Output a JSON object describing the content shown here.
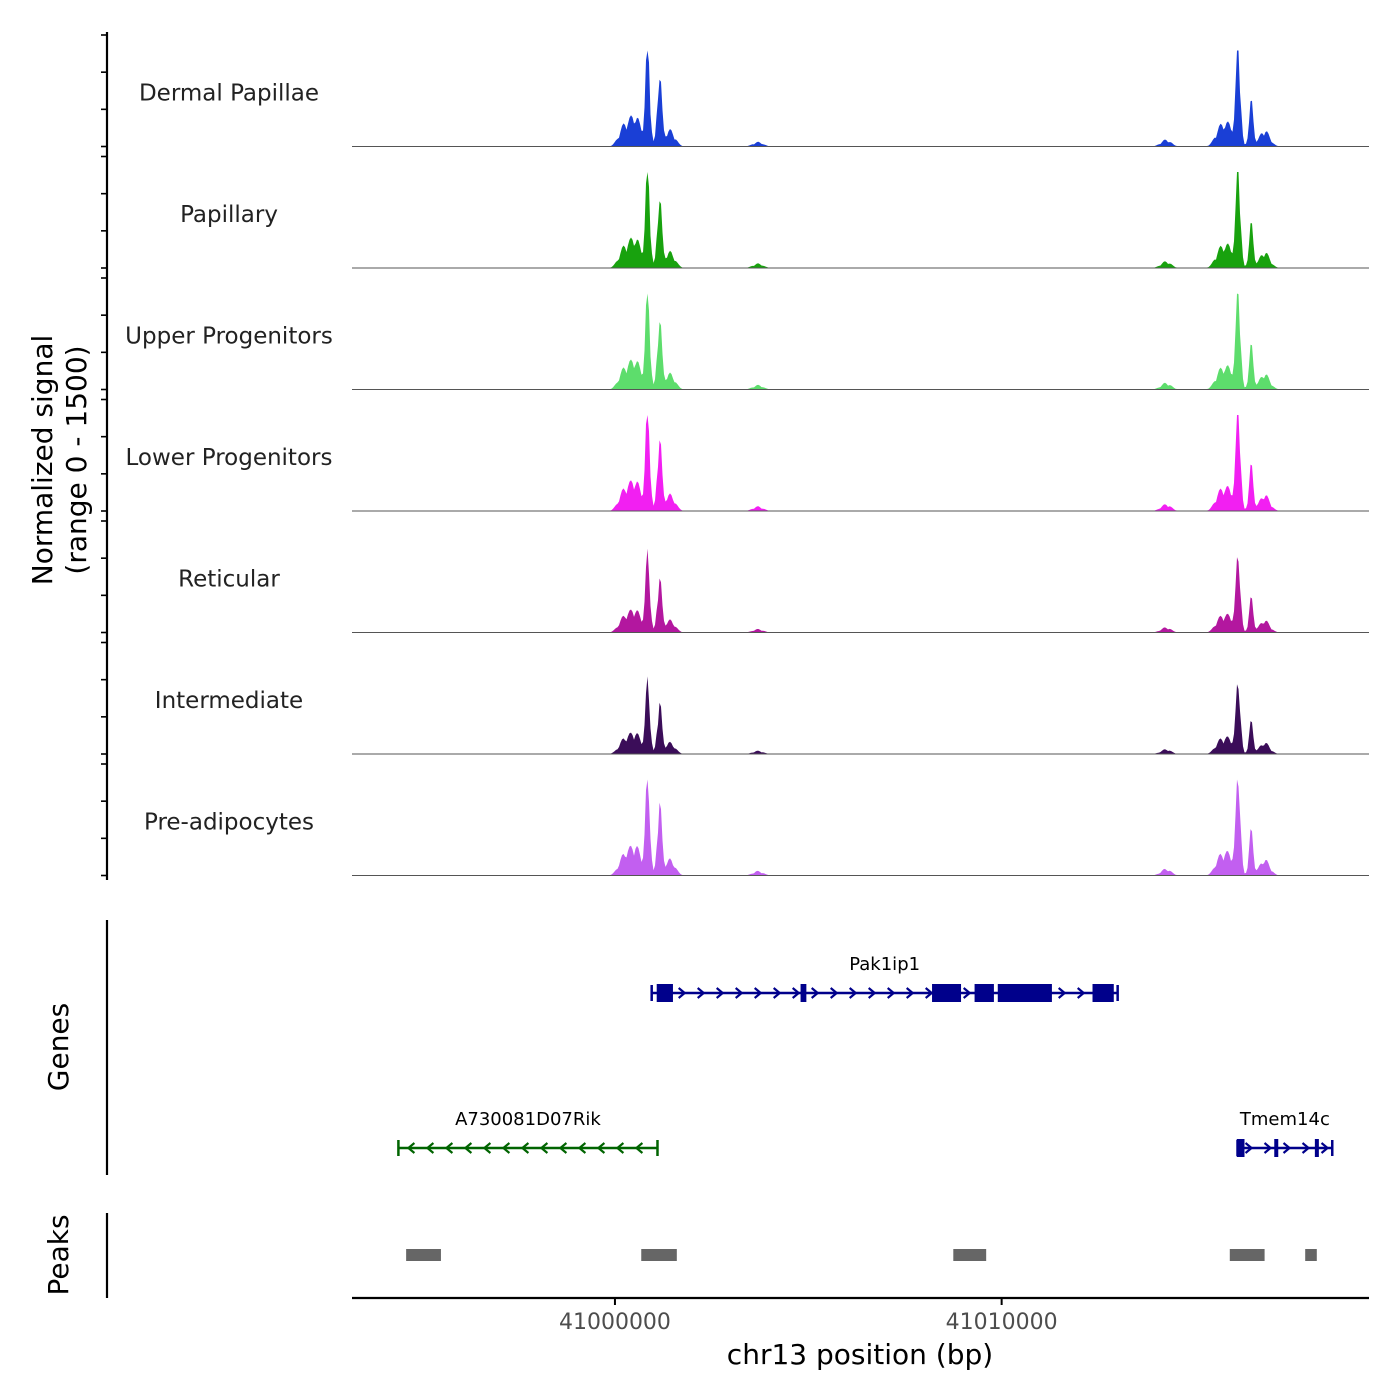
{
  "chart_data": {
    "type": "area",
    "title": "",
    "chromosome": "chr13",
    "xlabel": "chr13 position (bp)",
    "ylabel_line1": "Normalized signal",
    "ylabel_line2": "(range 0 - 1500)",
    "xlim": [
      40993200,
      41019500
    ],
    "ylim": [
      0,
      1500
    ],
    "x_ticks": [
      41000000,
      41010000
    ],
    "x_tick_labels": [
      "41000000",
      "41010000"
    ],
    "tracks": [
      {
        "name": "Dermal Papillae",
        "color": "#1a3fd6",
        "peak_scale": 1.0
      },
      {
        "name": "Papillary",
        "color": "#18a20e",
        "peak_scale": 0.98
      },
      {
        "name": "Upper Progenitors",
        "color": "#5ddd6c",
        "peak_scale": 0.97
      },
      {
        "name": "Lower Progenitors",
        "color": "#f21ff2",
        "peak_scale": 1.0
      },
      {
        "name": "Reticular",
        "color": "#b3179f",
        "peak_scale": 0.75
      },
      {
        "name": "Intermediate",
        "color": "#3b0d59",
        "peak_scale": 0.7
      },
      {
        "name": "Pre-adipocytes",
        "color": "#c25ff0",
        "peak_scale": 0.98
      }
    ],
    "peak_profile": [
      {
        "x": 41000180,
        "y": 80
      },
      {
        "x": 41000250,
        "y": 180
      },
      {
        "x": 41000470,
        "y": 260
      },
      {
        "x": 41000620,
        "y": 200
      },
      {
        "x": 41000850,
        "y": 1450
      },
      {
        "x": 41001150,
        "y": 1080
      },
      {
        "x": 41001420,
        "y": 220
      },
      {
        "x": 41003700,
        "y": 60
      },
      {
        "x": 41014250,
        "y": 90
      },
      {
        "x": 41015650,
        "y": 240
      },
      {
        "x": 41015900,
        "y": 260
      },
      {
        "x": 41016120,
        "y": 1500
      },
      {
        "x": 41016450,
        "y": 620
      },
      {
        "x": 41016800,
        "y": 220
      }
    ],
    "genes_track_title": "Genes",
    "genes": [
      {
        "name": "Pak1ip1",
        "start": 41000950,
        "end": 41013000,
        "strand": "+",
        "color": "#00008b",
        "exons": [
          [
            41001080,
            41001500
          ],
          [
            41004800,
            41004950
          ],
          [
            41008200,
            41008950
          ],
          [
            41009300,
            41009800
          ],
          [
            41009900,
            41011300
          ],
          [
            41012350,
            41012550
          ],
          [
            41012500,
            41012900
          ]
        ]
      },
      {
        "name": "A730081D07Rik",
        "start": 40994400,
        "end": 41001100,
        "strand": "-",
        "color": "#006400",
        "exons": []
      },
      {
        "name": "Tmem14c",
        "start": 41016100,
        "end": 41018550,
        "strand": "+",
        "color": "#00008b",
        "exons": [
          [
            41016080,
            41016280
          ],
          [
            41017050,
            41017150
          ],
          [
            41018100,
            41018200
          ]
        ]
      }
    ],
    "peaks_track_title": "Peaks",
    "peaks": [
      [
        40994600,
        40995500
      ],
      [
        41000680,
        41001600
      ],
      [
        41008750,
        41009600
      ],
      [
        41015900,
        41016800
      ],
      [
        41017850,
        41018150
      ]
    ]
  }
}
